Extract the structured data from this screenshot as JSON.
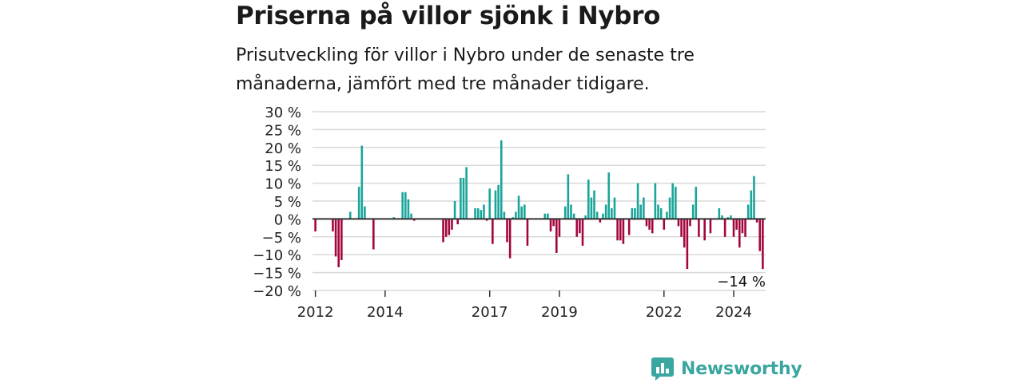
{
  "header": {
    "title": "Priserna på villor sjönk i Nybro",
    "subtitle": "Prisutveckling för villor i Nybro under de senaste tre månaderna, jämfört med tre månader tidigare."
  },
  "brand": {
    "name": "Newsworthy",
    "icon": "bar-chart-speech-bubble-icon",
    "color": "#3aa6a0"
  },
  "colors": {
    "positive": "#1aa59a",
    "negative": "#a3063f",
    "grid": "#d9d9d9",
    "baseline": "#333333"
  },
  "chart_data": {
    "type": "bar",
    "title": "Priserna på villor sjönk i Nybro",
    "subtitle": "Prisutveckling för villor i Nybro under de senaste tre månaderna, jämfört med tre månader tidigare.",
    "xlabel": "",
    "ylabel": "",
    "x_unit": "month",
    "x_range": [
      "2011-12",
      "2024-12"
    ],
    "ylim": [
      -20,
      30
    ],
    "y_ticks": [
      -20,
      -15,
      -10,
      -5,
      0,
      5,
      10,
      15,
      20,
      25,
      30
    ],
    "y_tick_labels": [
      "−20 %",
      "−15 %",
      "−10 %",
      "−5 %",
      "0 %",
      "5 %",
      "10 %",
      "15 %",
      "20 %",
      "25 %",
      "30 %"
    ],
    "x_ticks": [
      2012,
      2014,
      2017,
      2019,
      2022,
      2024
    ],
    "x_tick_labels": [
      "2012",
      "2014",
      "2017",
      "2019",
      "2022",
      "2024"
    ],
    "grid": true,
    "annotation": {
      "text": "−14 %",
      "x": "2024-10",
      "y": -14
    },
    "bars": [
      {
        "x": "2012-01",
        "y": -3.5
      },
      {
        "x": "2012-07",
        "y": -3.5
      },
      {
        "x": "2012-08",
        "y": -10.5
      },
      {
        "x": "2012-09",
        "y": -13.5
      },
      {
        "x": "2012-10",
        "y": -11.5
      },
      {
        "x": "2013-01",
        "y": 2
      },
      {
        "x": "2013-04",
        "y": 9
      },
      {
        "x": "2013-05",
        "y": 20.5
      },
      {
        "x": "2013-06",
        "y": 3.5
      },
      {
        "x": "2013-09",
        "y": -8.5
      },
      {
        "x": "2014-04",
        "y": 0.5
      },
      {
        "x": "2014-07",
        "y": 7.5
      },
      {
        "x": "2014-08",
        "y": 7.5
      },
      {
        "x": "2014-09",
        "y": 5.5
      },
      {
        "x": "2014-10",
        "y": 1.5
      },
      {
        "x": "2014-11",
        "y": -0.5
      },
      {
        "x": "2015-09",
        "y": -6.5
      },
      {
        "x": "2015-10",
        "y": -5
      },
      {
        "x": "2015-11",
        "y": -4.5
      },
      {
        "x": "2015-12",
        "y": -3
      },
      {
        "x": "2016-01",
        "y": 5
      },
      {
        "x": "2016-02",
        "y": -1.5
      },
      {
        "x": "2016-03",
        "y": 11.5
      },
      {
        "x": "2016-04",
        "y": 11.5
      },
      {
        "x": "2016-05",
        "y": 14.5
      },
      {
        "x": "2016-08",
        "y": 3
      },
      {
        "x": "2016-09",
        "y": 3
      },
      {
        "x": "2016-10",
        "y": 2.5
      },
      {
        "x": "2016-11",
        "y": 4
      },
      {
        "x": "2016-12",
        "y": -0.5
      },
      {
        "x": "2017-01",
        "y": 8.5
      },
      {
        "x": "2017-02",
        "y": -7
      },
      {
        "x": "2017-03",
        "y": 8
      },
      {
        "x": "2017-04",
        "y": 9.5
      },
      {
        "x": "2017-05",
        "y": 22
      },
      {
        "x": "2017-06",
        "y": 2
      },
      {
        "x": "2017-07",
        "y": -6.5
      },
      {
        "x": "2017-08",
        "y": -11
      },
      {
        "x": "2017-09",
        "y": 0.5
      },
      {
        "x": "2017-10",
        "y": 2
      },
      {
        "x": "2017-11",
        "y": 6.5
      },
      {
        "x": "2017-12",
        "y": 3.5
      },
      {
        "x": "2018-01",
        "y": 4
      },
      {
        "x": "2018-02",
        "y": -7.5
      },
      {
        "x": "2018-08",
        "y": 1.5
      },
      {
        "x": "2018-09",
        "y": 1.5
      },
      {
        "x": "2018-10",
        "y": -3.5
      },
      {
        "x": "2018-11",
        "y": -2
      },
      {
        "x": "2018-12",
        "y": -9.5
      },
      {
        "x": "2019-01",
        "y": -5
      },
      {
        "x": "2019-03",
        "y": 3.5
      },
      {
        "x": "2019-04",
        "y": 12.5
      },
      {
        "x": "2019-05",
        "y": 4
      },
      {
        "x": "2019-06",
        "y": 1.5
      },
      {
        "x": "2019-07",
        "y": -5
      },
      {
        "x": "2019-08",
        "y": -4
      },
      {
        "x": "2019-09",
        "y": -7.5
      },
      {
        "x": "2019-10",
        "y": 1
      },
      {
        "x": "2019-11",
        "y": 11
      },
      {
        "x": "2019-12",
        "y": 6
      },
      {
        "x": "2020-01",
        "y": 8
      },
      {
        "x": "2020-02",
        "y": 2
      },
      {
        "x": "2020-03",
        "y": -1
      },
      {
        "x": "2020-04",
        "y": 1.5
      },
      {
        "x": "2020-05",
        "y": 4
      },
      {
        "x": "2020-06",
        "y": 13
      },
      {
        "x": "2020-07",
        "y": 3
      },
      {
        "x": "2020-08",
        "y": 6
      },
      {
        "x": "2020-09",
        "y": -6
      },
      {
        "x": "2020-10",
        "y": -6
      },
      {
        "x": "2020-11",
        "y": -7
      },
      {
        "x": "2021-01",
        "y": -4.5
      },
      {
        "x": "2021-02",
        "y": 3
      },
      {
        "x": "2021-03",
        "y": 3
      },
      {
        "x": "2021-04",
        "y": 10
      },
      {
        "x": "2021-05",
        "y": 4
      },
      {
        "x": "2021-06",
        "y": 6
      },
      {
        "x": "2021-07",
        "y": -2
      },
      {
        "x": "2021-08",
        "y": -3
      },
      {
        "x": "2021-09",
        "y": -4
      },
      {
        "x": "2021-10",
        "y": 10
      },
      {
        "x": "2021-11",
        "y": 4
      },
      {
        "x": "2021-12",
        "y": 3
      },
      {
        "x": "2022-01",
        "y": -3
      },
      {
        "x": "2022-02",
        "y": 2
      },
      {
        "x": "2022-03",
        "y": 6
      },
      {
        "x": "2022-04",
        "y": 10
      },
      {
        "x": "2022-05",
        "y": 9
      },
      {
        "x": "2022-06",
        "y": -2
      },
      {
        "x": "2022-07",
        "y": -5
      },
      {
        "x": "2022-08",
        "y": -8
      },
      {
        "x": "2022-09",
        "y": -14
      },
      {
        "x": "2022-10",
        "y": -2
      },
      {
        "x": "2022-11",
        "y": 4
      },
      {
        "x": "2022-12",
        "y": 9
      },
      {
        "x": "2023-01",
        "y": -5
      },
      {
        "x": "2023-03",
        "y": -6
      },
      {
        "x": "2023-05",
        "y": -4
      },
      {
        "x": "2023-08",
        "y": 3
      },
      {
        "x": "2023-09",
        "y": 1
      },
      {
        "x": "2023-10",
        "y": -5
      },
      {
        "x": "2023-11",
        "y": 0.5
      },
      {
        "x": "2023-12",
        "y": 1
      },
      {
        "x": "2024-01",
        "y": -5
      },
      {
        "x": "2024-02",
        "y": -3
      },
      {
        "x": "2024-03",
        "y": -8
      },
      {
        "x": "2024-04",
        "y": -4
      },
      {
        "x": "2024-05",
        "y": -5
      },
      {
        "x": "2024-06",
        "y": 4
      },
      {
        "x": "2024-07",
        "y": 8
      },
      {
        "x": "2024-08",
        "y": 12
      },
      {
        "x": "2024-09",
        "y": -1
      },
      {
        "x": "2024-10",
        "y": -9
      },
      {
        "x": "2024-11",
        "y": -14
      }
    ]
  }
}
